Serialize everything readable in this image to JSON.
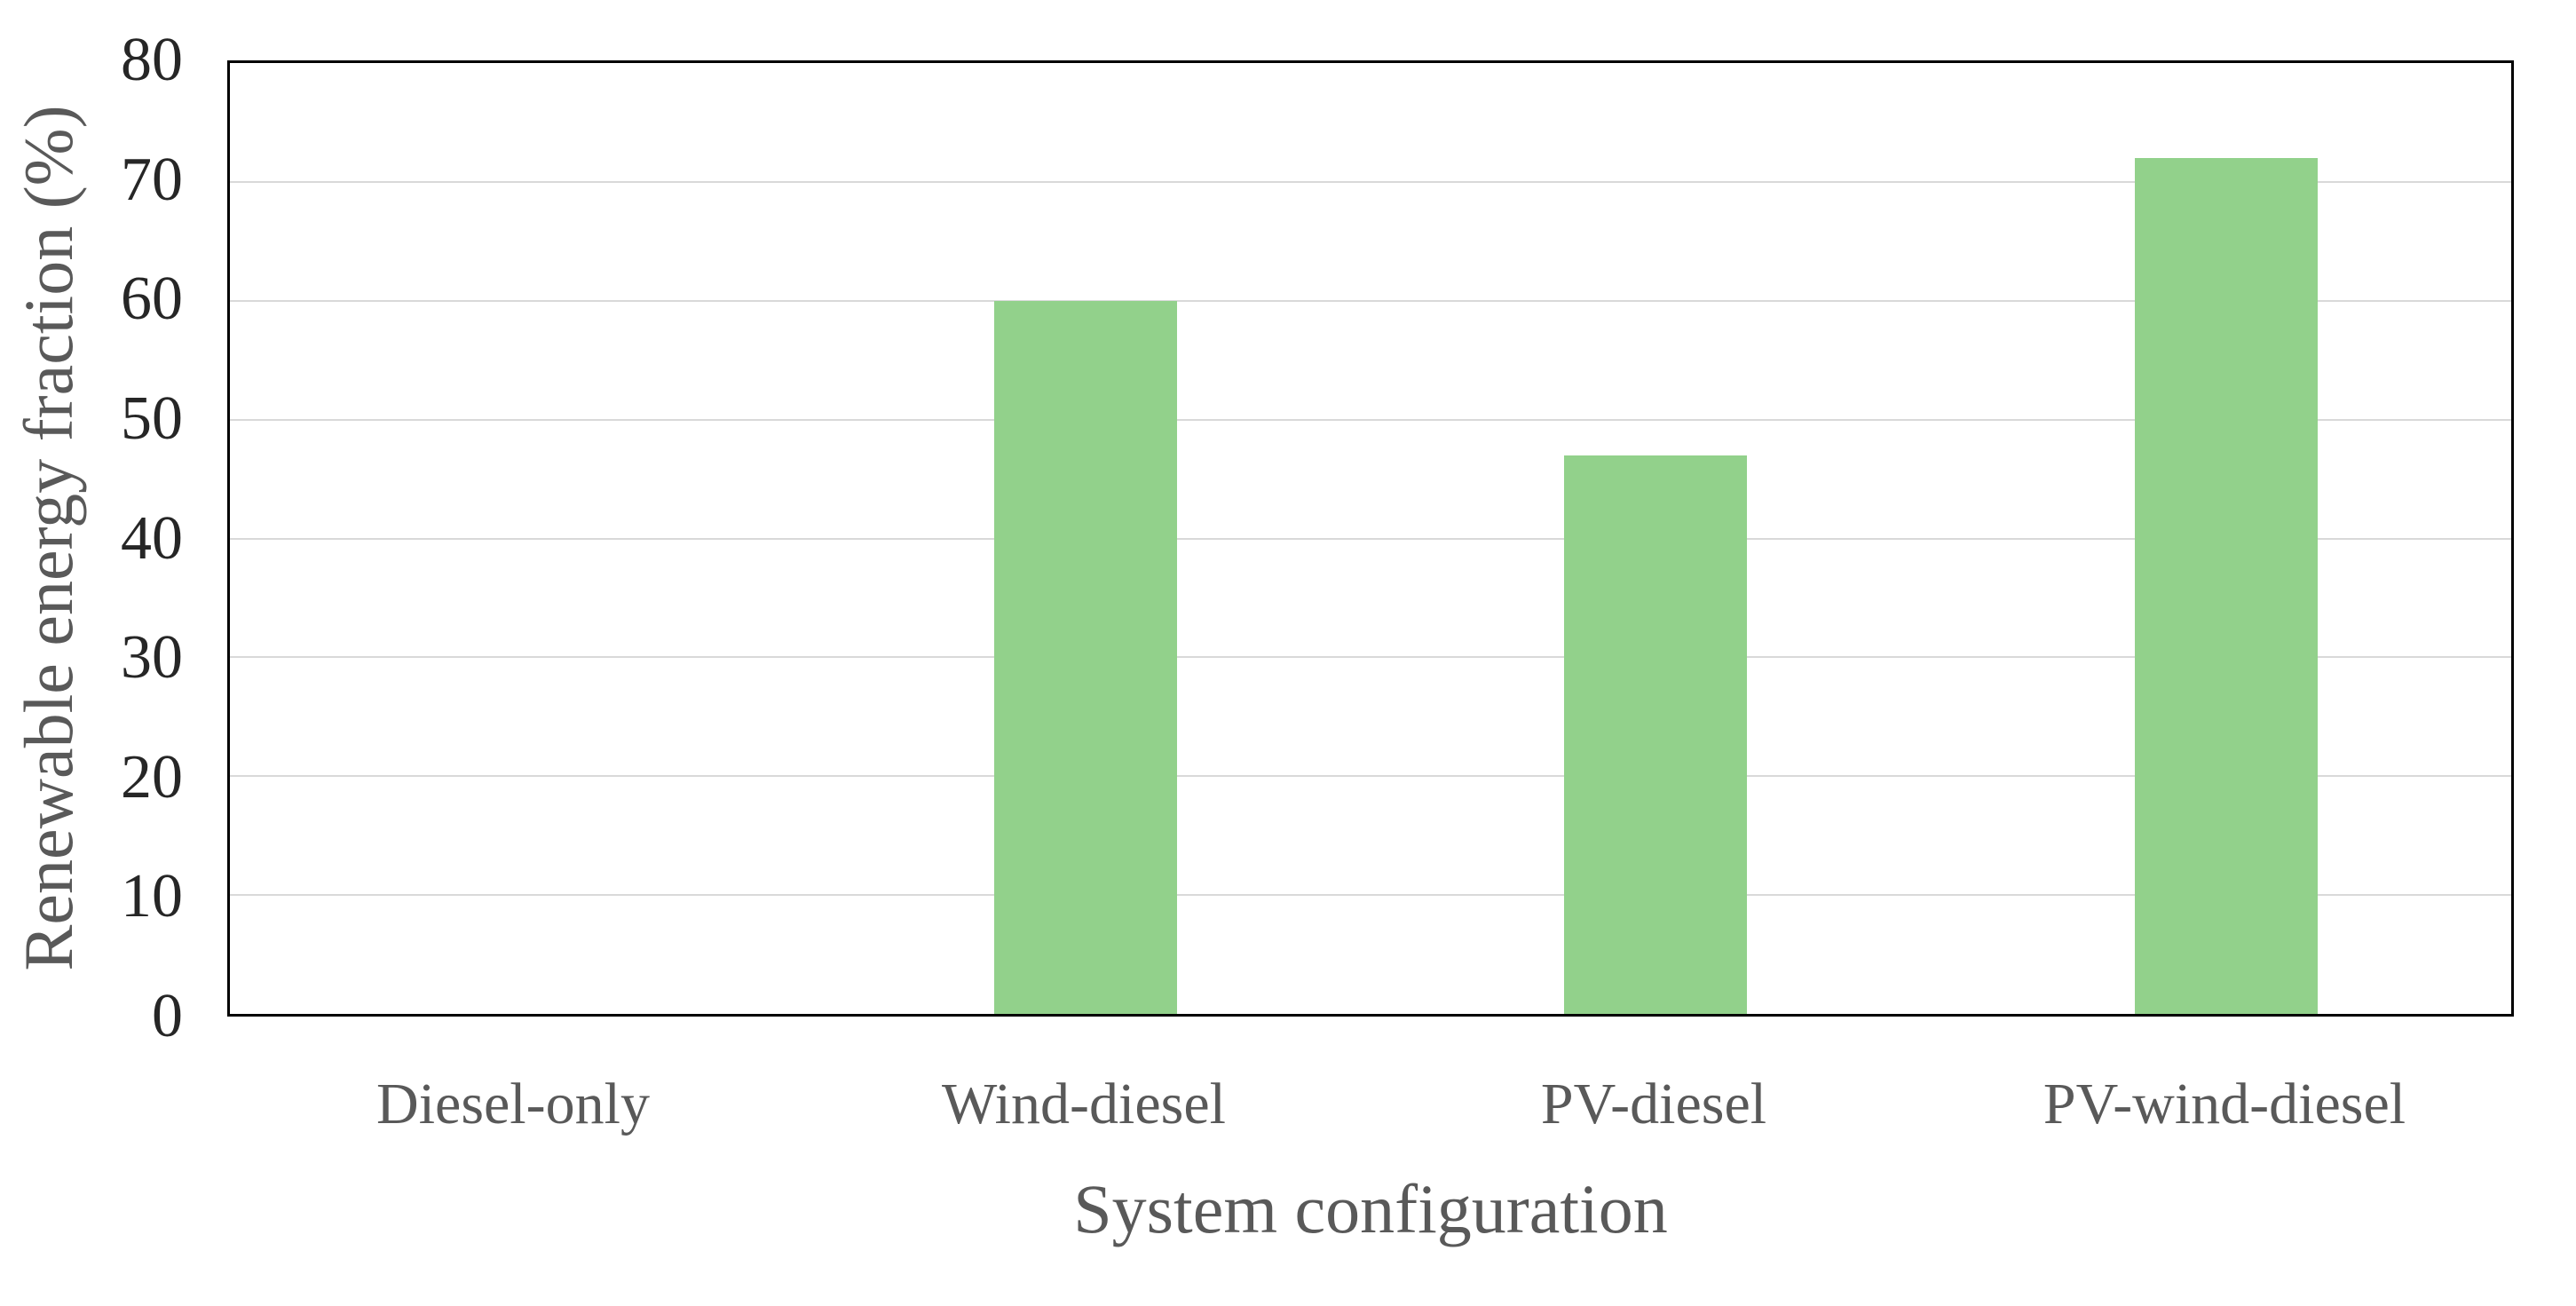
{
  "chart_data": {
    "type": "bar",
    "title": "",
    "xlabel": "System configuration",
    "ylabel": "Renewable energy fraction (%)",
    "categories": [
      "Diesel-only",
      "Wind-diesel",
      "PV-diesel",
      "PV-wind-diesel"
    ],
    "values": [
      0,
      60,
      47,
      72
    ],
    "ylim": [
      0,
      80
    ],
    "ytick_step": 10,
    "yticks": [
      0,
      10,
      20,
      30,
      40,
      50,
      60,
      70,
      80
    ],
    "grid": true,
    "legend_position": "none",
    "bar_gap_fraction": 0.32,
    "colors": {
      "bar": "#92D18B",
      "gridline": "#D9D9D9",
      "frame": "#000000",
      "tick_label": "#262626",
      "axis_title": "#595959",
      "category_label": "#595959",
      "background": "#FFFFFF"
    }
  }
}
